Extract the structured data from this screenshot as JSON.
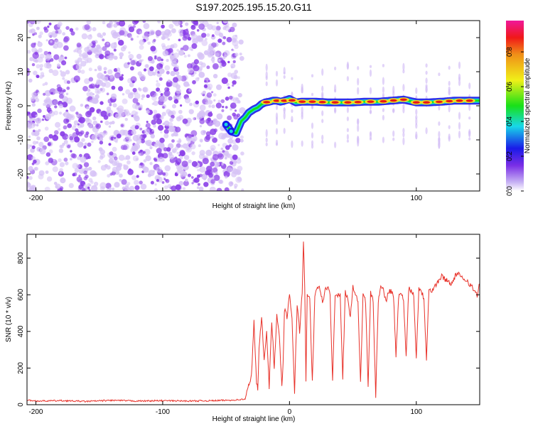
{
  "title": "S197.2025.195.15.20.G11",
  "colors": {
    "snr_line": "#e8322a",
    "track_core": "#e81818",
    "track_mid": "#f0e020",
    "track_green": "#18e018",
    "track_cyan": "#18d8e0",
    "track_blue": "#1818e8",
    "noise": "#8a3ee8",
    "noise_light": "#d6c2f6"
  },
  "colorbar": {
    "label": "Normalized spectral amplitude",
    "ticks": [
      "0.0",
      "0.2",
      "0.4",
      "0.6",
      "0.8"
    ],
    "tick_values": [
      0.0,
      0.2,
      0.4,
      0.6,
      0.8
    ],
    "range": [
      0,
      0.98
    ]
  },
  "chart_data": [
    {
      "type": "heatmap",
      "xlabel": "Height of straight line (km)",
      "ylabel": "Frequency (Hz)",
      "xlim": [
        -207,
        150
      ],
      "ylim": [
        -25,
        25
      ],
      "xticks": [
        -200,
        -100,
        0,
        100
      ],
      "yticks": [
        20,
        10,
        0,
        -10,
        -20
      ],
      "noise_region_x": [
        -207,
        -37
      ],
      "track": {
        "x": [
          -50,
          -46,
          -42,
          -38,
          -35,
          -32,
          -28,
          -25,
          -22,
          -19,
          -16,
          -13,
          -10,
          -7,
          -4,
          0,
          5,
          10,
          20,
          30,
          40,
          50,
          60,
          70,
          80,
          90,
          100,
          110,
          120,
          130,
          140,
          150
        ],
        "freq": [
          -5.5,
          -7.5,
          -8,
          -4.5,
          -3.5,
          -2,
          -1,
          -0.5,
          0.5,
          1,
          1.2,
          1.5,
          1.5,
          1.2,
          1.5,
          2,
          1,
          1.2,
          1.2,
          1,
          1,
          1,
          1.2,
          1.2,
          1.5,
          1.8,
          1,
          1,
          1.2,
          1.5,
          1.5,
          1.5
        ]
      },
      "hot_spots_x": [
        -18,
        -10,
        -4,
        2,
        10,
        18,
        26,
        36,
        46,
        54,
        64,
        74,
        82,
        90,
        100,
        108,
        118,
        126,
        134,
        142
      ]
    },
    {
      "type": "line",
      "xlabel": "Height of straight line (km)",
      "ylabel": "SNR (10 * v/v)",
      "xlim": [
        -207,
        150
      ],
      "ylim": [
        0,
        930
      ],
      "xticks": [
        -200,
        -100,
        0,
        100
      ],
      "yticks": [
        0,
        200,
        400,
        600,
        800
      ],
      "series": [
        {
          "x": [
            -207,
            -200,
            -180,
            -160,
            -140,
            -120,
            -100,
            -80,
            -60,
            -45,
            -35,
            -30,
            -28,
            -26,
            -25,
            -24,
            -22,
            -20,
            -18,
            -16,
            -14,
            -12,
            -10,
            -8,
            -6,
            -5,
            -4,
            -2,
            0,
            2,
            4,
            6,
            8,
            10,
            11,
            12,
            13,
            14,
            16,
            18,
            20,
            22,
            24,
            26,
            28,
            30,
            32,
            34,
            36,
            38,
            40,
            42,
            44,
            46,
            48,
            50,
            52,
            54,
            56,
            58,
            60,
            62,
            64,
            66,
            68,
            70,
            72,
            74,
            76,
            78,
            80,
            82,
            84,
            86,
            88,
            90,
            92,
            94,
            96,
            98,
            100,
            102,
            104,
            106,
            108,
            110,
            112,
            116,
            120,
            124,
            128,
            132,
            136,
            140,
            144,
            148,
            150
          ],
          "y": [
            25,
            20,
            22,
            18,
            24,
            20,
            22,
            20,
            22,
            25,
            30,
            160,
            450,
            120,
            80,
            300,
            480,
            250,
            400,
            100,
            460,
            200,
            480,
            380,
            90,
            220,
            520,
            480,
            600,
            460,
            70,
            550,
            400,
            620,
            900,
            640,
            120,
            600,
            580,
            120,
            580,
            650,
            630,
            560,
            620,
            640,
            600,
            130,
            610,
            600,
            600,
            150,
            620,
            580,
            470,
            650,
            600,
            560,
            120,
            610,
            560,
            100,
            620,
            560,
            40,
            560,
            660,
            630,
            560,
            620,
            620,
            600,
            260,
            580,
            620,
            560,
            260,
            640,
            620,
            600,
            250,
            640,
            620,
            580,
            250,
            640,
            620,
            660,
            700,
            680,
            660,
            720,
            690,
            680,
            640,
            600,
            660
          ]
        }
      ]
    }
  ]
}
